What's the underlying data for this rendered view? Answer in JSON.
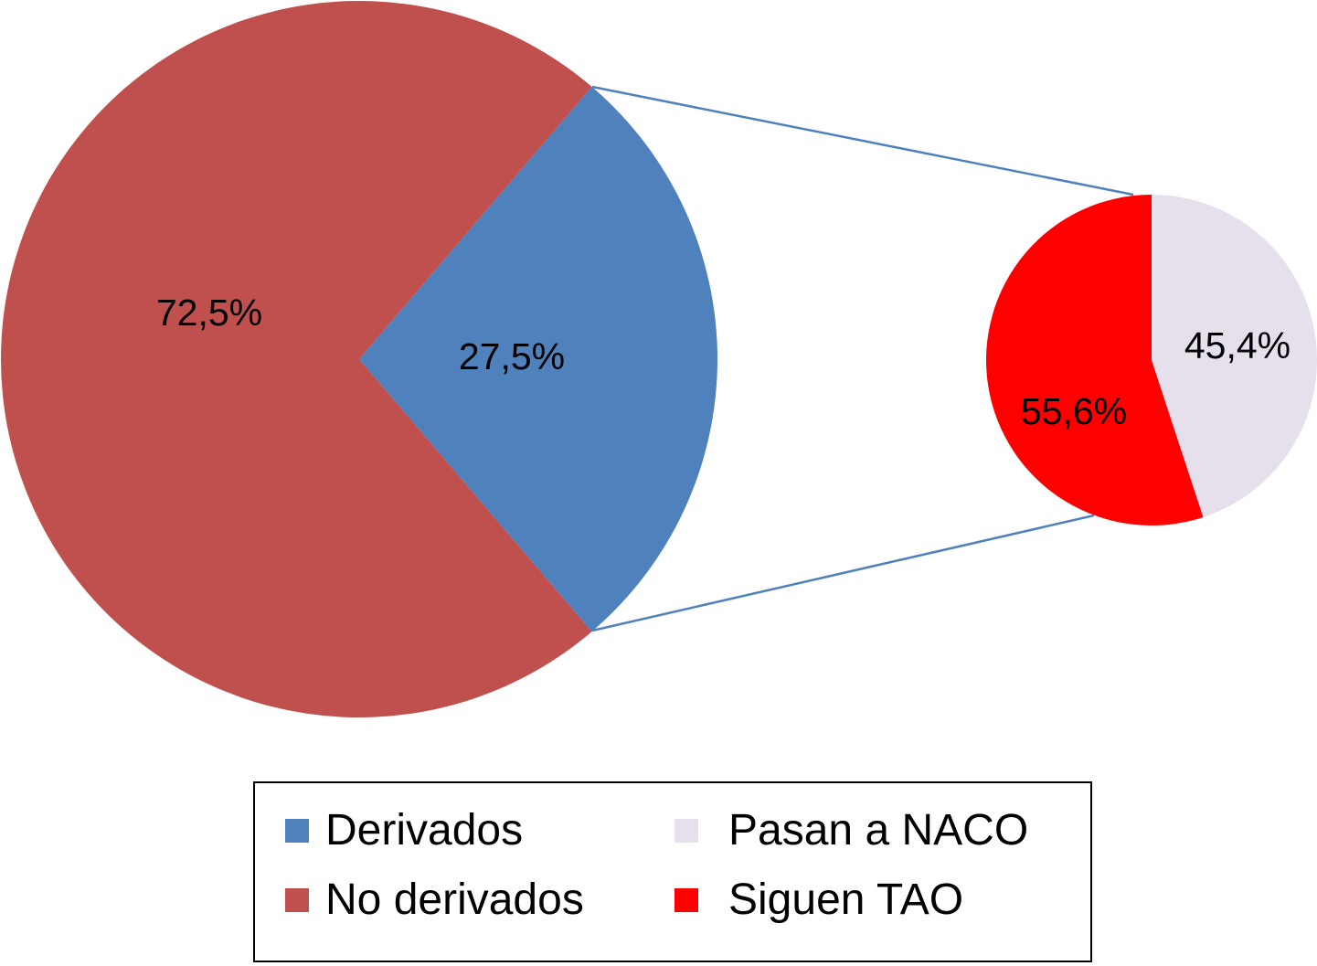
{
  "chart_data": {
    "type": "pie",
    "subtype": "pie-of-pie",
    "main_pie": {
      "slices": [
        {
          "name": "Derivados",
          "value": 27.5,
          "label": "27,5%",
          "color": "#4F81BD"
        },
        {
          "name": "No derivados",
          "value": 72.5,
          "label": "72,5%",
          "color": "#C0504D"
        }
      ]
    },
    "secondary_pie": {
      "breakdown_of": "Derivados",
      "slices": [
        {
          "name": "Pasan a NACO",
          "value": 45.4,
          "label": "45,4%",
          "color": "#E6E0EC"
        },
        {
          "name": "Siguen TAO",
          "value": 55.6,
          "label": "55,6%",
          "color": "#FF0000"
        }
      ]
    },
    "legend": {
      "placement": "bottom",
      "entries": [
        {
          "label": "Derivados",
          "color": "#4F81BD"
        },
        {
          "label": "No derivados",
          "color": "#C0504D"
        },
        {
          "label": "Pasan a NACO",
          "color": "#E6E0EC"
        },
        {
          "label": "Siguen TAO",
          "color": "#FF0000"
        }
      ]
    },
    "connector_color": "#4F81BD"
  }
}
